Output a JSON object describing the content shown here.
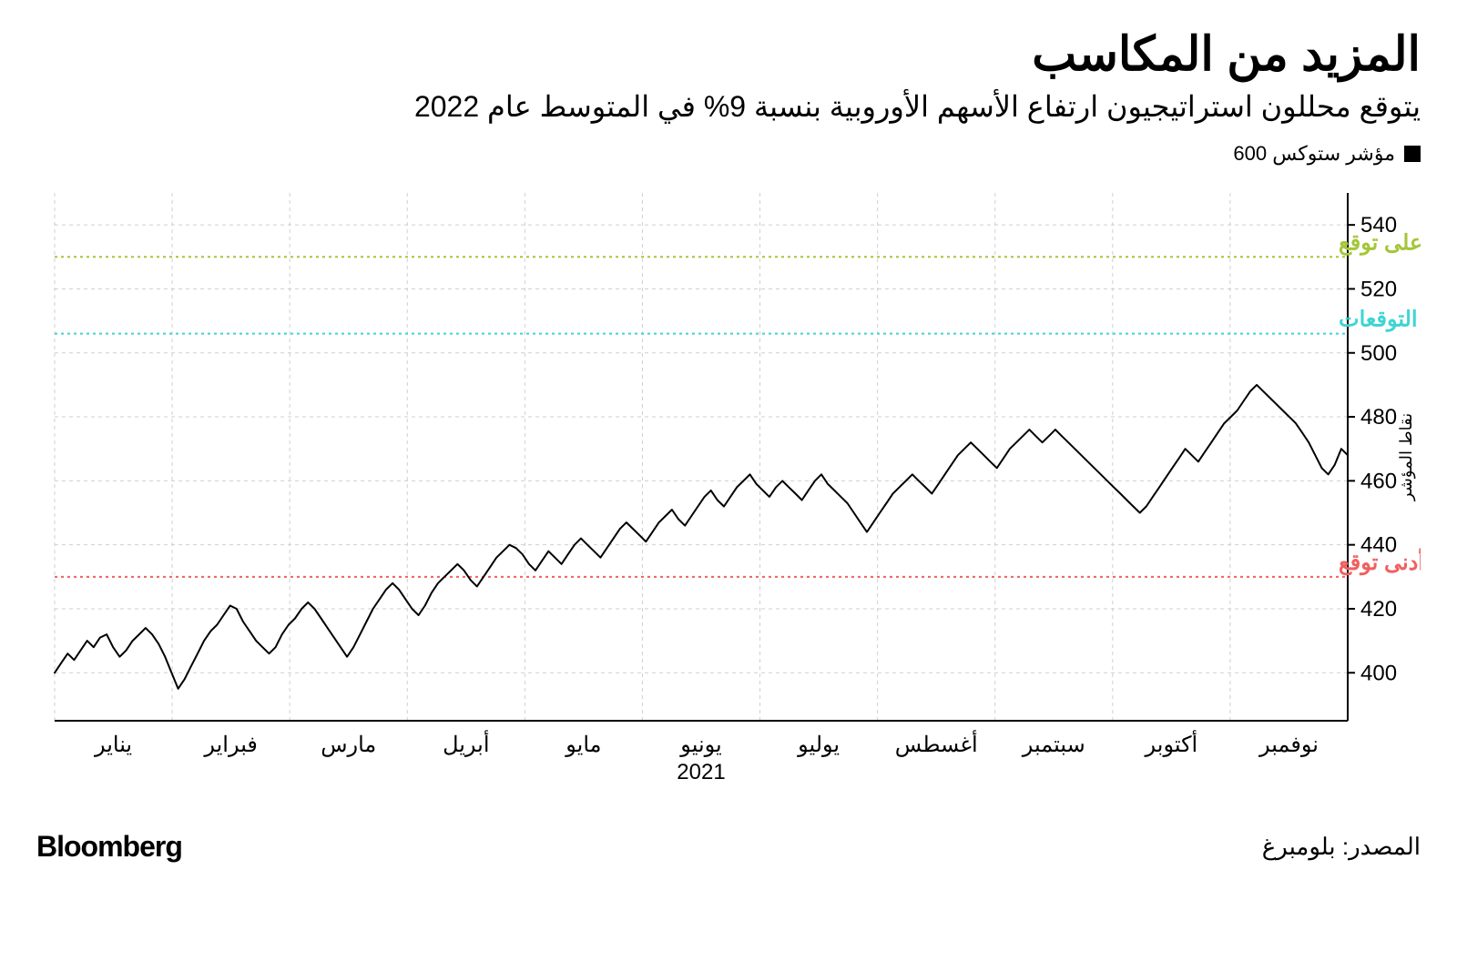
{
  "header": {
    "title": "المزيد من المكاسب",
    "subtitle": "يتوقع محللون استراتيجيون ارتفاع الأسهم الأوروبية بنسبة 9% في المتوسط عام 2022"
  },
  "legend": {
    "series_name": "مؤشر ستوكس 600",
    "swatch_color": "#000000"
  },
  "chart": {
    "type": "line",
    "background_color": "#ffffff",
    "grid_color": "#cfcfcf",
    "axis_color": "#000000",
    "line_color": "#000000",
    "line_width": 2,
    "ylim": [
      385,
      550
    ],
    "yticks": [
      400,
      420,
      440,
      460,
      480,
      500,
      520,
      540
    ],
    "y_axis_label": "نقاط المؤشر",
    "x_months": [
      "يناير",
      "فبراير",
      "مارس",
      "أبريل",
      "مايو",
      "يونيو",
      "يوليو",
      "أغسطس",
      "سبتمبر",
      "أكتوبر",
      "نوفمبر"
    ],
    "x_year_label": "2021",
    "reference_lines": [
      {
        "label": "أعلى توقع",
        "value": 530,
        "color": "#a4c639",
        "dash": "3,4"
      },
      {
        "label": "متوسط التوقعات",
        "value": 506,
        "color": "#3fd4d4",
        "dash": "3,4"
      },
      {
        "label": "أدنى توقع",
        "value": 430,
        "color": "#f06060",
        "dash": "3,4"
      }
    ],
    "line_data": [
      400,
      403,
      406,
      404,
      407,
      410,
      408,
      411,
      412,
      408,
      405,
      407,
      410,
      412,
      414,
      412,
      409,
      405,
      400,
      395,
      398,
      402,
      406,
      410,
      413,
      415,
      418,
      421,
      420,
      416,
      413,
      410,
      408,
      406,
      408,
      412,
      415,
      417,
      420,
      422,
      420,
      417,
      414,
      411,
      408,
      405,
      408,
      412,
      416,
      420,
      423,
      426,
      428,
      426,
      423,
      420,
      418,
      421,
      425,
      428,
      430,
      432,
      434,
      432,
      429,
      427,
      430,
      433,
      436,
      438,
      440,
      439,
      437,
      434,
      432,
      435,
      438,
      436,
      434,
      437,
      440,
      442,
      440,
      438,
      436,
      439,
      442,
      445,
      447,
      445,
      443,
      441,
      444,
      447,
      449,
      451,
      448,
      446,
      449,
      452,
      455,
      457,
      454,
      452,
      455,
      458,
      460,
      462,
      459,
      457,
      455,
      458,
      460,
      458,
      456,
      454,
      457,
      460,
      462,
      459,
      457,
      455,
      453,
      450,
      447,
      444,
      447,
      450,
      453,
      456,
      458,
      460,
      462,
      460,
      458,
      456,
      459,
      462,
      465,
      468,
      470,
      472,
      470,
      468,
      466,
      464,
      467,
      470,
      472,
      474,
      476,
      474,
      472,
      474,
      476,
      474,
      472,
      470,
      468,
      466,
      464,
      462,
      460,
      458,
      456,
      454,
      452,
      450,
      452,
      455,
      458,
      461,
      464,
      467,
      470,
      468,
      466,
      469,
      472,
      475,
      478,
      480,
      482,
      485,
      488,
      490,
      488,
      486,
      484,
      482,
      480,
      478,
      475,
      472,
      468,
      464,
      462,
      465,
      470,
      468
    ]
  },
  "footer": {
    "source": "المصدر: بلومبرغ",
    "brand": "Bloomberg"
  }
}
